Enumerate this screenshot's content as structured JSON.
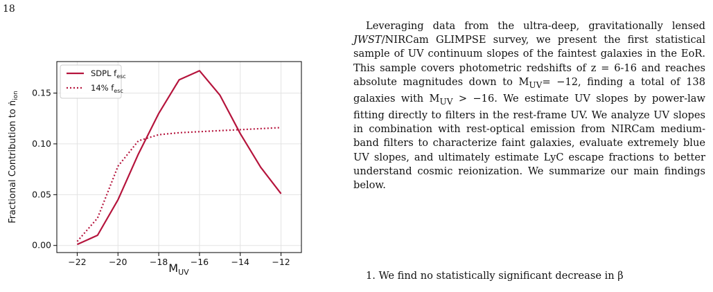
{
  "page": {
    "number": "18"
  },
  "chart_data": {
    "type": "line",
    "x": [
      -22,
      -21,
      -20,
      -19,
      -18,
      -17,
      -16,
      -15,
      -14,
      -13,
      -12
    ],
    "series": [
      {
        "name": "SDPL f",
        "name_sub": "esc",
        "style": "solid",
        "values": [
          0.001,
          0.01,
          0.045,
          0.09,
          0.13,
          0.163,
          0.172,
          0.148,
          0.11,
          0.077,
          0.051
        ]
      },
      {
        "name": "14% f",
        "name_sub": "esc",
        "style": "dotted",
        "values": [
          0.004,
          0.027,
          0.078,
          0.103,
          0.109,
          0.111,
          0.112,
          0.113,
          0.114,
          0.115,
          0.116
        ]
      }
    ],
    "xlim": [
      -23,
      -11
    ],
    "ylim": [
      -0.007,
      0.181
    ],
    "xticks": [
      -22,
      -20,
      -18,
      -16,
      -14,
      -12
    ],
    "xtick_labels": [
      "−22",
      "−20",
      "−18",
      "−16",
      "−14",
      "−12"
    ],
    "yticks": [
      0.0,
      0.05,
      0.1,
      0.15
    ],
    "ytick_labels": [
      "0.00",
      "0.05",
      "0.10",
      "0.15"
    ],
    "xlabel": "M",
    "xlabel_sub": "UV",
    "ylabel": "Fractional Contribution to ṅ",
    "ylabel_sub": "ion",
    "grid": true,
    "legend_position": "top-left",
    "color": "#b5143c"
  },
  "text": {
    "p1_a": "Leveraging data from the ultra-deep, gravitationally lensed ",
    "p1_jwst": "JWST",
    "p1_b": "/NIRCam GLIMPSE survey, we present the first statistical sample of UV continuum slopes of the faintest galaxies in the EoR. This sample covers photometric redshifts of z = 6-16 and reaches absolute magnitudes down to M",
    "sub_uv": "UV",
    "p1_c": "= −12, finding a total of 138 galaxies with M",
    "p1_d": " > −16. We estimate UV slopes by power-law fitting directly to filters in the rest-frame UV. We analyze UV slopes in combination with rest-optical emission from NIRCam medium-band filters to characterize faint galaxies, evaluate extremely blue UV slopes, and ultimately estimate LyC escape fractions to better understand cosmic reionization. We summarize our main findings below.",
    "item1": "1. We find no statistically significant decrease in β"
  }
}
